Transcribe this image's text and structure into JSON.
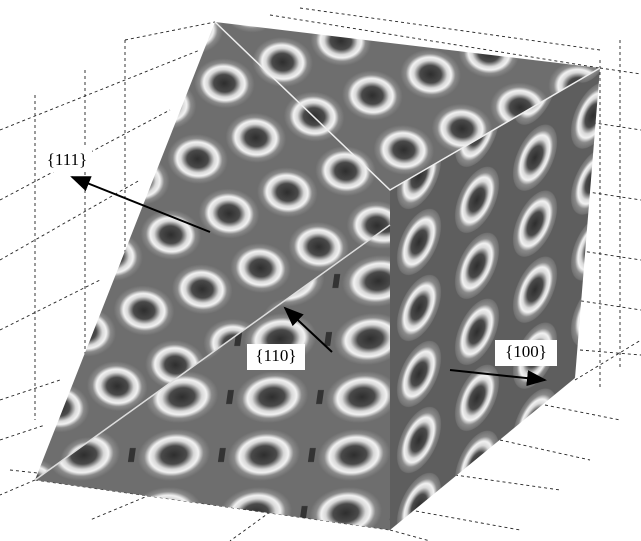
{
  "labels": [
    "{111}",
    "{110}",
    "{100}"
  ]
}
